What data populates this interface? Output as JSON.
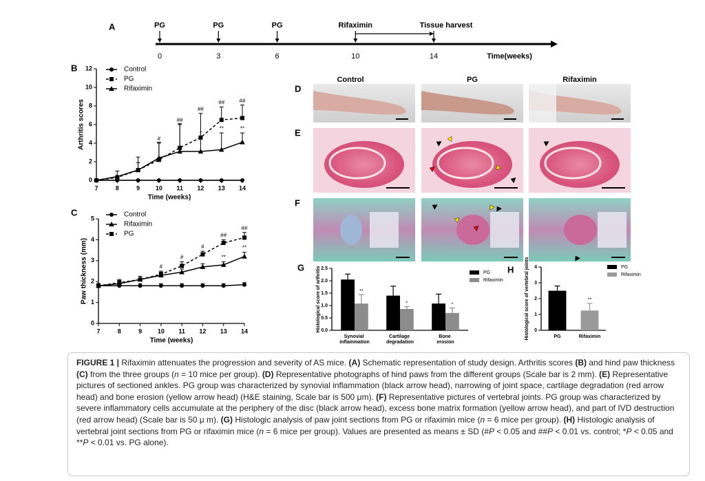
{
  "timeline": {
    "letter": "A",
    "events": [
      {
        "week": 0,
        "label": "PG"
      },
      {
        "week": 3,
        "label": "PG"
      },
      {
        "week": 6,
        "label": "PG"
      },
      {
        "week": 10,
        "label": "Rifaximin"
      },
      {
        "week": 14,
        "label": "Tissue harvest"
      }
    ],
    "ticks": [
      0,
      3,
      6,
      10,
      14
    ],
    "axis_label": "Time(weeks)"
  },
  "chart_data": [
    {
      "type": "line",
      "letter": "B",
      "ylabel": "Arthritis scores",
      "xlabel": "Time (weeks)",
      "x": [
        7,
        8,
        9,
        10,
        11,
        12,
        13,
        14
      ],
      "xlim": [
        7,
        14
      ],
      "xticks": [
        7,
        8,
        9,
        10,
        11,
        12,
        13,
        14
      ],
      "ylim": [
        0,
        12
      ],
      "yticks": [
        0,
        2,
        4,
        6,
        8,
        10,
        12
      ],
      "series": [
        {
          "name": "Control",
          "color": "#000000",
          "marker": "circle",
          "values": [
            0,
            0,
            0,
            0,
            0,
            0,
            0,
            0
          ]
        },
        {
          "name": "PG",
          "color": "#000000",
          "marker": "square",
          "dash": true,
          "values": [
            0,
            0.3,
            1.1,
            2.2,
            3.5,
            4.6,
            6.5,
            6.7
          ],
          "errors": [
            0,
            0.2,
            0.8,
            1.8,
            2.5,
            2.6,
            1.4,
            1.4
          ],
          "labels": [
            null,
            null,
            null,
            "#",
            "##",
            "##",
            "##",
            "##"
          ]
        },
        {
          "name": "Rifaximin",
          "color": "#000000",
          "marker": "triangle",
          "values": [
            0,
            0.4,
            1.1,
            2.4,
            3.1,
            3.1,
            3.3,
            4.1
          ],
          "errors": [
            0,
            0.6,
            1.4,
            1.7,
            3.0,
            1.5,
            1.8,
            1.0
          ],
          "labels": [
            null,
            null,
            null,
            null,
            null,
            "*",
            "**",
            "**"
          ]
        }
      ]
    },
    {
      "type": "line",
      "letter": "C",
      "ylabel": "Paw  thickness (mm)",
      "xlabel": "Time (weeks)",
      "x": [
        7,
        8,
        9,
        10,
        11,
        12,
        13,
        14
      ],
      "xlim": [
        7,
        14
      ],
      "xticks": [
        7,
        8,
        9,
        10,
        11,
        12,
        13,
        14
      ],
      "ylim": [
        0,
        5
      ],
      "yticks": [
        0,
        1,
        2,
        3,
        4,
        5
      ],
      "series": [
        {
          "name": "Control",
          "color": "#000000",
          "marker": "circle",
          "values": [
            1.8,
            1.8,
            1.8,
            1.8,
            1.8,
            1.8,
            1.8,
            1.85
          ],
          "errors": [
            0.1,
            0.1,
            0.1,
            0.1,
            0.1,
            0.1,
            0.1,
            0.1
          ]
        },
        {
          "name": "Rifaximin",
          "color": "#000000",
          "marker": "triangle",
          "values": [
            1.8,
            1.9,
            2.1,
            2.3,
            2.45,
            2.7,
            2.8,
            3.2
          ],
          "errors": [
            0.1,
            0.15,
            0.15,
            0.15,
            0.15,
            0.15,
            0.15,
            0.2
          ],
          "labels": [
            null,
            null,
            null,
            null,
            null,
            null,
            "**",
            "**"
          ]
        },
        {
          "name": "PG",
          "color": "#000000",
          "marker": "square",
          "dash": true,
          "values": [
            1.8,
            1.95,
            2.1,
            2.35,
            2.75,
            3.3,
            3.85,
            4.1
          ],
          "errors": [
            0.1,
            0.15,
            0.15,
            0.15,
            0.2,
            0.15,
            0.15,
            0.25
          ],
          "labels": [
            null,
            null,
            null,
            "#",
            "#",
            "#",
            "##",
            "##"
          ]
        }
      ]
    },
    {
      "type": "bar",
      "letter": "G",
      "ylabel": "Histological  score of arthritis",
      "categories": [
        "Synovial inflammation",
        "Cartilage degradation",
        "Bone erosion"
      ],
      "ylim": [
        0,
        2.5
      ],
      "yticks": [
        {
          "value": 0,
          "label": "0.0"
        },
        0.5,
        {
          "value": 1,
          "label": "1.0"
        },
        1.5,
        {
          "value": 2,
          "label": "2.0"
        },
        2.5
      ],
      "series": [
        {
          "name": "PG",
          "color": "#000000",
          "values": [
            2.05,
            1.4,
            1.08
          ],
          "errors": [
            0.22,
            0.38,
            0.38
          ]
        },
        {
          "name": "Rifaximin",
          "color": "#8c8c8c",
          "values": [
            1.08,
            0.86,
            0.7
          ],
          "errors": [
            0.36,
            0.1,
            0.2
          ],
          "labels": [
            "**",
            "*",
            "*"
          ]
        }
      ]
    },
    {
      "type": "bar",
      "letter": "H",
      "ylabel": "Histological  score of vertebral joints",
      "categories": [
        "PG",
        "Rifaximin"
      ],
      "colors": [
        "#000000",
        "#9a9a9a"
      ],
      "ylim": [
        0,
        4
      ],
      "yticks": [
        0,
        1,
        2,
        3,
        4
      ],
      "values": [
        2.5,
        1.25
      ],
      "errors": [
        0.3,
        0.45
      ],
      "labels": [
        null,
        "**"
      ],
      "legend": true
    }
  ],
  "photos": {
    "columns": [
      "Control",
      "PG",
      "Rifaximin"
    ],
    "rows": [
      "D",
      "E",
      "F"
    ]
  },
  "caption": [
    {
      "text": "FIGURE 1 | ",
      "style": "bold"
    },
    {
      "text": "Rifaximin attenuates the progression and severity of AS mice. "
    },
    {
      "text": "(A)",
      "style": "bold"
    },
    {
      "text": " Schematic representation of study design. Arthritis scores "
    },
    {
      "text": "(B)",
      "style": "bold"
    },
    {
      "text": " and hind paw thickness "
    },
    {
      "text": "(C)",
      "style": "bold"
    },
    {
      "text": " from the three groups ("
    },
    {
      "text": "n",
      "style": "italic"
    },
    {
      "text": " = 10 mice per group). "
    },
    {
      "text": "(D)",
      "style": "bold"
    },
    {
      "text": " Representative photographs of hind paws from the different groups (Scale bar is 2 mm). "
    },
    {
      "text": "(E)",
      "style": "bold"
    },
    {
      "text": " Representative pictures of sectioned ankles. PG group was characterized by synovial inflammation (black arrow head), narrowing of joint space, cartilage degradation (red arrow head) and bone erosion (yellow arrow head) (H&E staining, Scale bar is 500 μm). "
    },
    {
      "text": "(F)",
      "style": "bold"
    },
    {
      "text": " Representative pictures of vertebral joints. PG group was characterized by severe inflammatory cells accumulate at the periphery of the disc (black arrow head), excess bone matrix formation (yellow arrow head), and part of IVD destruction (red arrow head) (Scale bar is 50 μ m). "
    },
    {
      "text": "(G)",
      "style": "bold"
    },
    {
      "text": " Histologic analysis of paw joint sections from PG or rifaximin mice ("
    },
    {
      "text": "n",
      "style": "italic"
    },
    {
      "text": " = 6 mice per group). "
    },
    {
      "text": "(H)",
      "style": "bold"
    },
    {
      "text": " Histologic analysis of vertebral joint sections from PG or rifaximin mice ("
    },
    {
      "text": "n",
      "style": "italic"
    },
    {
      "text": " = 6 mice per group). Values are presented as means ± SD (#"
    },
    {
      "text": "P",
      "style": "italic"
    },
    {
      "text": " < 0.05 and ##"
    },
    {
      "text": "P",
      "style": "italic"
    },
    {
      "text": " < 0.01 vs. control; *"
    },
    {
      "text": "P",
      "style": "italic"
    },
    {
      "text": " < 0.05 and **"
    },
    {
      "text": "P",
      "style": "italic"
    },
    {
      "text": " < 0.01 vs. PG alone)."
    }
  ]
}
